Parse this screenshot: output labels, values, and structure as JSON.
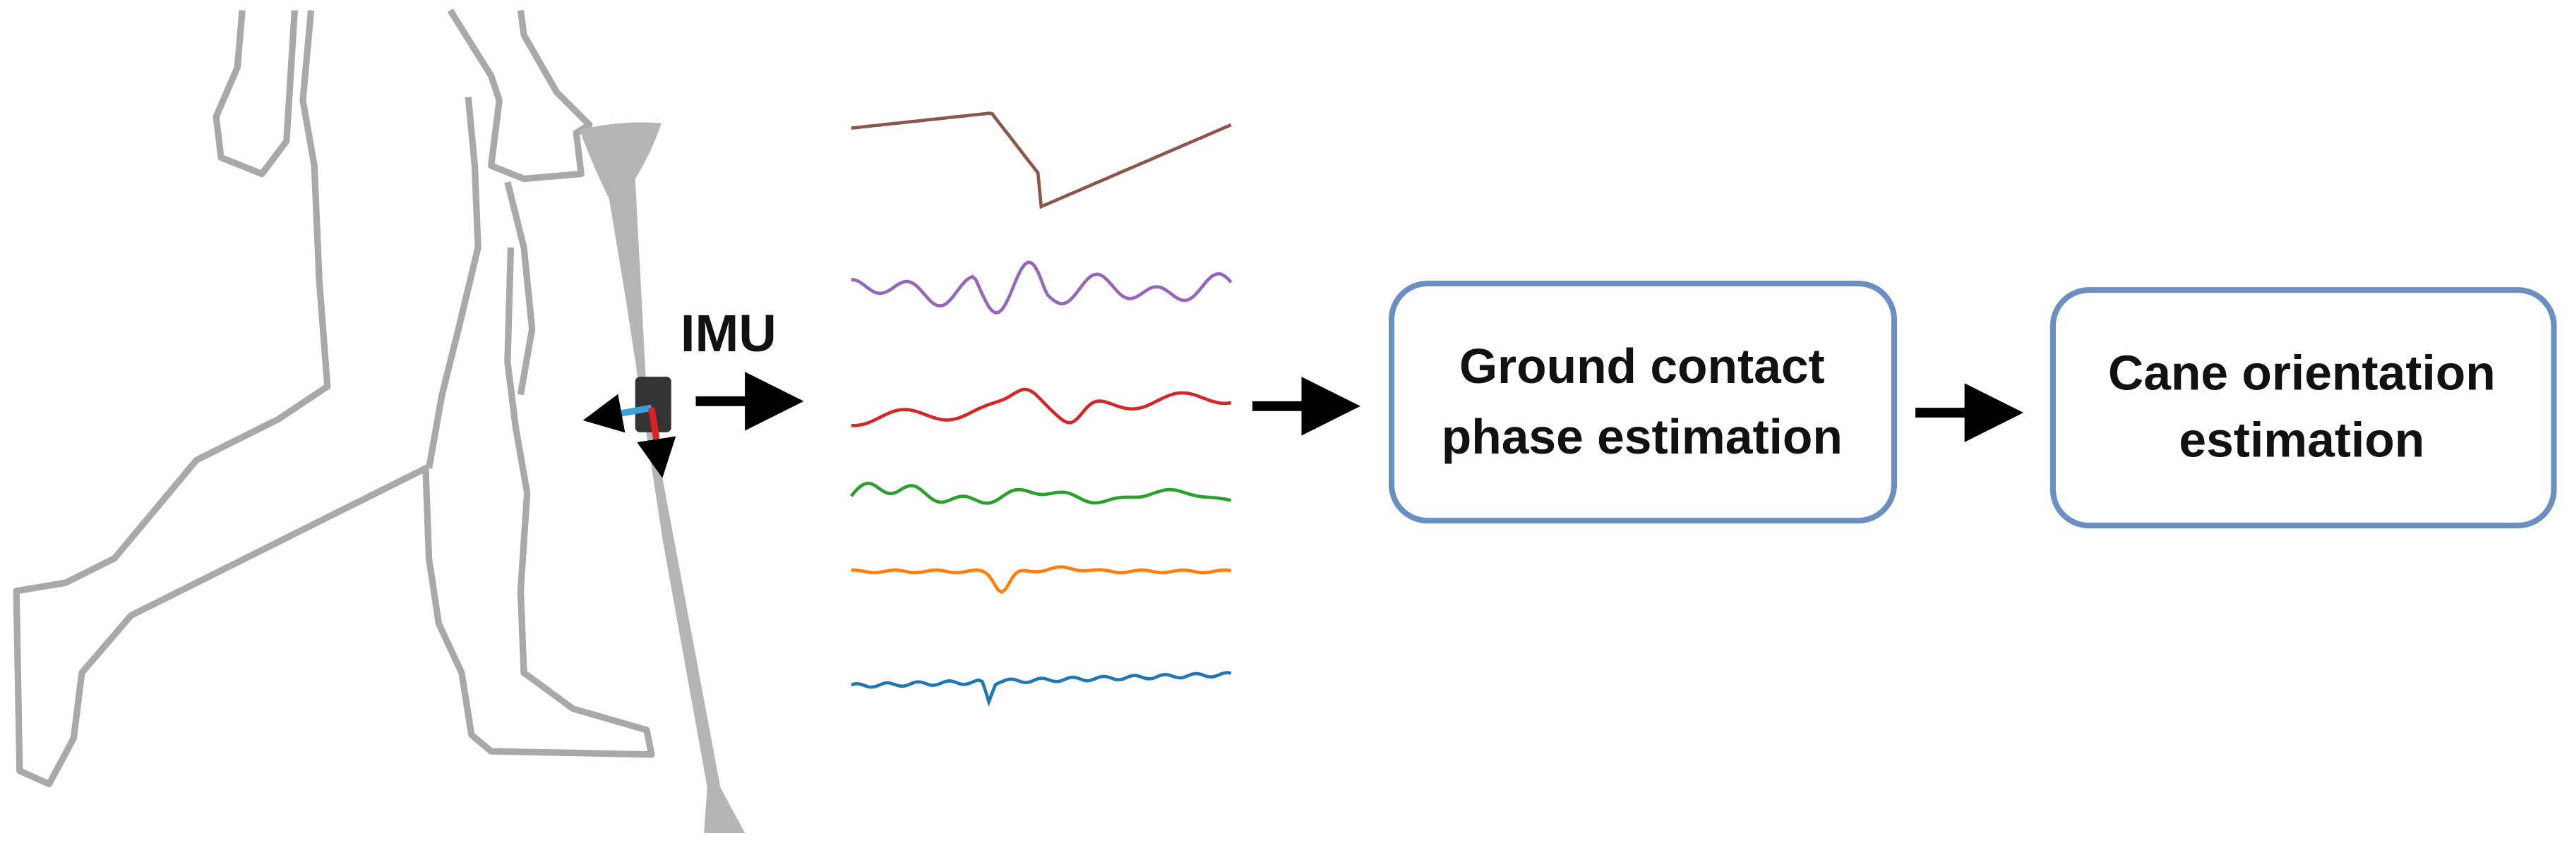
{
  "labels": {
    "imu": "IMU"
  },
  "nodes": [
    {
      "label_lines": [
        "Ground contact",
        "phase estimation"
      ]
    },
    {
      "label_lines": [
        "Cane orientation",
        "estimation"
      ]
    }
  ]
}
